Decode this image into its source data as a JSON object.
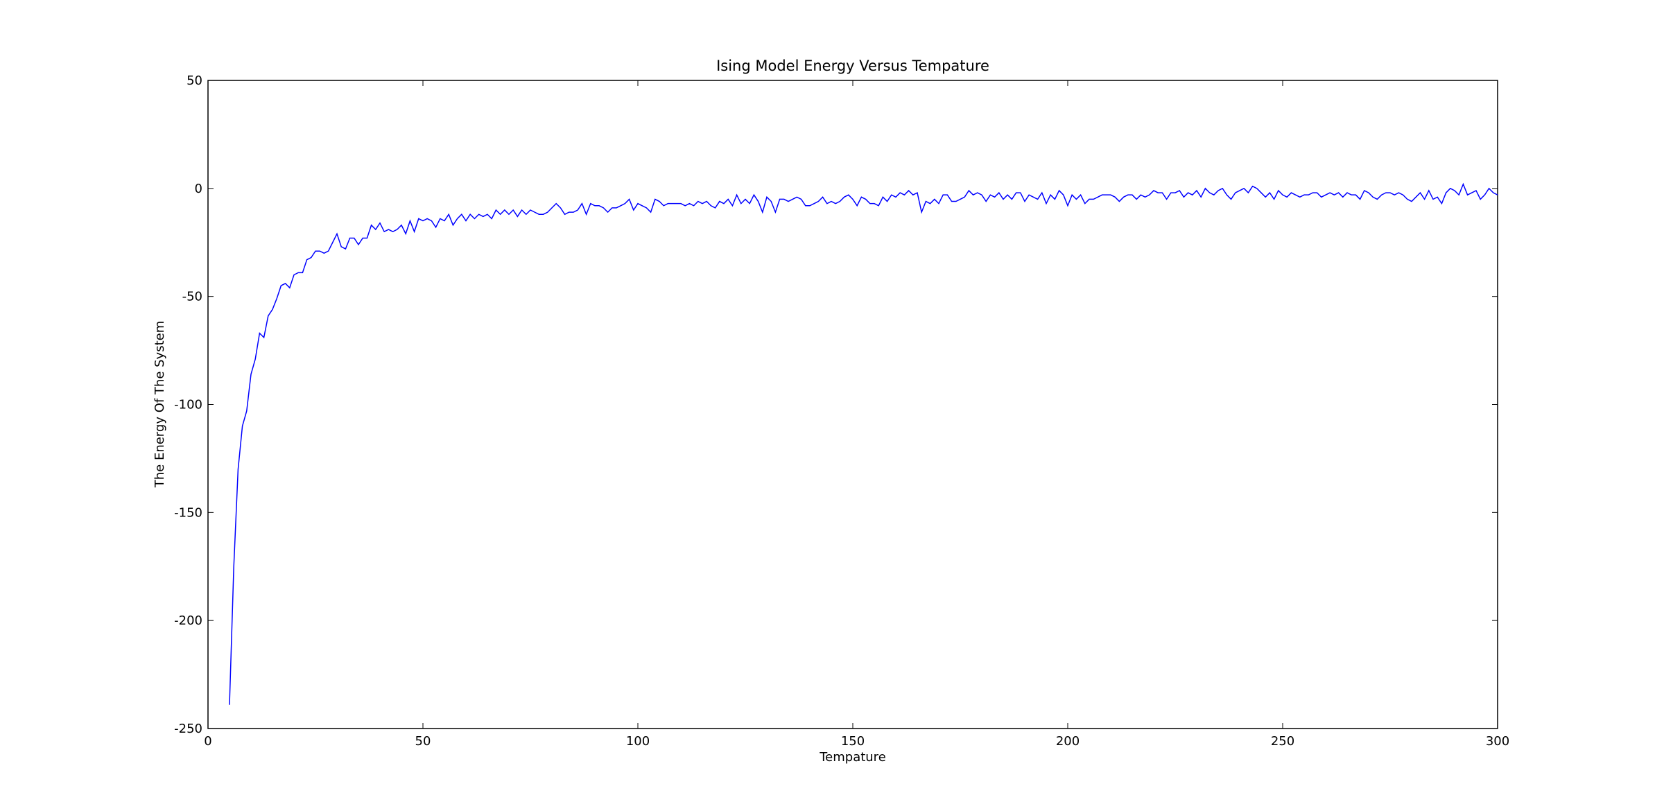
{
  "chart_data": {
    "type": "line",
    "title": "Ising Model Energy Versus Tempature",
    "x_label": "Tempature",
    "y_label": "The Energy Of The System",
    "color": "#0000ff",
    "xlim": [
      0,
      300
    ],
    "xticks": [
      0,
      50,
      100,
      150,
      200,
      250,
      300
    ],
    "ylim": [
      -250,
      50
    ],
    "yticks": [
      -250,
      -200,
      -150,
      -100,
      -50,
      0,
      50
    ],
    "x": [
      5,
      6,
      7,
      8,
      9,
      10,
      11,
      12,
      13,
      14,
      15,
      16,
      17,
      18,
      19,
      20,
      21,
      22,
      23,
      24,
      25,
      26,
      27,
      28,
      29,
      30,
      31,
      32,
      33,
      34,
      35,
      36,
      37,
      38,
      39,
      40,
      41,
      42,
      43,
      44,
      45,
      46,
      47,
      48,
      49,
      50,
      51,
      52,
      53,
      54,
      55,
      56,
      57,
      58,
      59,
      60,
      61,
      62,
      63,
      64,
      65,
      66,
      67,
      68,
      69,
      70,
      71,
      72,
      73,
      74,
      75,
      76,
      77,
      78,
      79,
      80,
      81,
      82,
      83,
      84,
      85,
      86,
      87,
      88,
      89,
      90,
      91,
      92,
      93,
      94,
      95,
      96,
      97,
      98,
      99,
      100,
      101,
      102,
      103,
      104,
      105,
      106,
      107,
      108,
      109,
      110,
      111,
      112,
      113,
      114,
      115,
      116,
      117,
      118,
      119,
      120,
      121,
      122,
      123,
      124,
      125,
      126,
      127,
      128,
      129,
      130,
      131,
      132,
      133,
      134,
      135,
      136,
      137,
      138,
      139,
      140,
      141,
      142,
      143,
      144,
      145,
      146,
      147,
      148,
      149,
      150,
      151,
      152,
      153,
      154,
      155,
      156,
      157,
      158,
      159,
      160,
      161,
      162,
      163,
      164,
      165,
      166,
      167,
      168,
      169,
      170,
      171,
      172,
      173,
      174,
      175,
      176,
      177,
      178,
      179,
      180,
      181,
      182,
      183,
      184,
      185,
      186,
      187,
      188,
      189,
      190,
      191,
      192,
      193,
      194,
      195,
      196,
      197,
      198,
      199,
      200,
      201,
      202,
      203,
      204,
      205,
      206,
      207,
      208,
      209,
      210,
      211,
      212,
      213,
      214,
      215,
      216,
      217,
      218,
      219,
      220,
      221,
      222,
      223,
      224,
      225,
      226,
      227,
      228,
      229,
      230,
      231,
      232,
      233,
      234,
      235,
      236,
      237,
      238,
      239,
      240,
      241,
      242,
      243,
      244,
      245,
      246,
      247,
      248,
      249,
      250,
      251,
      252,
      253,
      254,
      255,
      256,
      257,
      258,
      259,
      260,
      261,
      262,
      263,
      264,
      265,
      266,
      267,
      268,
      269,
      270,
      271,
      272,
      273,
      274,
      275,
      276,
      277,
      278,
      279,
      280,
      281,
      282,
      283,
      284,
      285,
      286,
      287,
      288,
      289,
      290,
      291,
      292,
      293,
      294,
      295,
      296,
      297,
      298,
      299,
      300
    ],
    "values": [
      -239,
      -175,
      -130,
      -110,
      -103,
      -86,
      -79,
      -67,
      -69,
      -59,
      -56,
      -51,
      -45,
      -44,
      -46,
      -40,
      -39,
      -39,
      -33,
      -32,
      -29,
      -29,
      -30,
      -29,
      -25,
      -21,
      -27,
      -28,
      -23,
      -23,
      -26,
      -23,
      -23,
      -17,
      -19,
      -16,
      -20,
      -19,
      -20,
      -19,
      -17,
      -21,
      -15,
      -20,
      -14,
      -15,
      -14,
      -15,
      -18,
      -14,
      -15,
      -12,
      -17,
      -14,
      -12,
      -15,
      -12,
      -14,
      -12,
      -13,
      -12,
      -14,
      -10,
      -12,
      -10,
      -12,
      -10,
      -13,
      -10,
      -12,
      -10,
      -11,
      -12,
      -12,
      -11,
      -9,
      -7,
      -9,
      -12,
      -11,
      -11,
      -10,
      -7,
      -12,
      -7,
      -8,
      -8,
      -9,
      -11,
      -9,
      -9,
      -8,
      -7,
      -5,
      -10,
      -7,
      -8,
      -9,
      -11,
      -5,
      -6,
      -8,
      -7,
      -7,
      -7,
      -7,
      -8,
      -7,
      -8,
      -6,
      -7,
      -6,
      -8,
      -9,
      -6,
      -7,
      -5,
      -8,
      -3,
      -7,
      -5,
      -7,
      -3,
      -6,
      -11,
      -4,
      -6,
      -11,
      -5,
      -5,
      -6,
      -5,
      -4,
      -5,
      -8,
      -8,
      -7,
      -6,
      -4,
      -7,
      -6,
      -7,
      -6,
      -4,
      -3,
      -5,
      -8,
      -4,
      -5,
      -7,
      -7,
      -8,
      -4,
      -6,
      -3,
      -4,
      -2,
      -3,
      -1,
      -3,
      -2,
      -11,
      -6,
      -7,
      -5,
      -7,
      -3,
      -3,
      -6,
      -6,
      -5,
      -4,
      -1,
      -3,
      -2,
      -3,
      -6,
      -3,
      -4,
      -2,
      -5,
      -3,
      -5,
      -2,
      -2,
      -6,
      -3,
      -4,
      -5,
      -2,
      -7,
      -3,
      -5,
      -1,
      -3,
      -8,
      -3,
      -5,
      -3,
      -7,
      -5,
      -5,
      -4,
      -3,
      -3,
      -3,
      -4,
      -6,
      -4,
      -3,
      -3,
      -5,
      -3,
      -4,
      -3,
      -1,
      -2,
      -2,
      -5,
      -2,
      -2,
      -1,
      -4,
      -2,
      -3,
      -1,
      -4,
      0,
      -2,
      -3,
      -1,
      0,
      -3,
      -5,
      -2,
      -1,
      0,
      -2,
      1,
      0,
      -2,
      -4,
      -2,
      -5,
      -1,
      -3,
      -4,
      -2,
      -3,
      -4,
      -3,
      -3,
      -2,
      -2,
      -4,
      -3,
      -2,
      -3,
      -2,
      -4,
      -2,
      -3,
      -3,
      -5,
      -1,
      -2,
      -4,
      -5,
      -3,
      -2,
      -2,
      -3,
      -2,
      -3,
      -5,
      -6,
      -4,
      -2,
      -5,
      -1,
      -5,
      -4,
      -7,
      -2,
      0,
      -1,
      -3,
      2,
      -3,
      -2,
      -1,
      -5,
      -3,
      0,
      -2,
      -3
    ]
  }
}
